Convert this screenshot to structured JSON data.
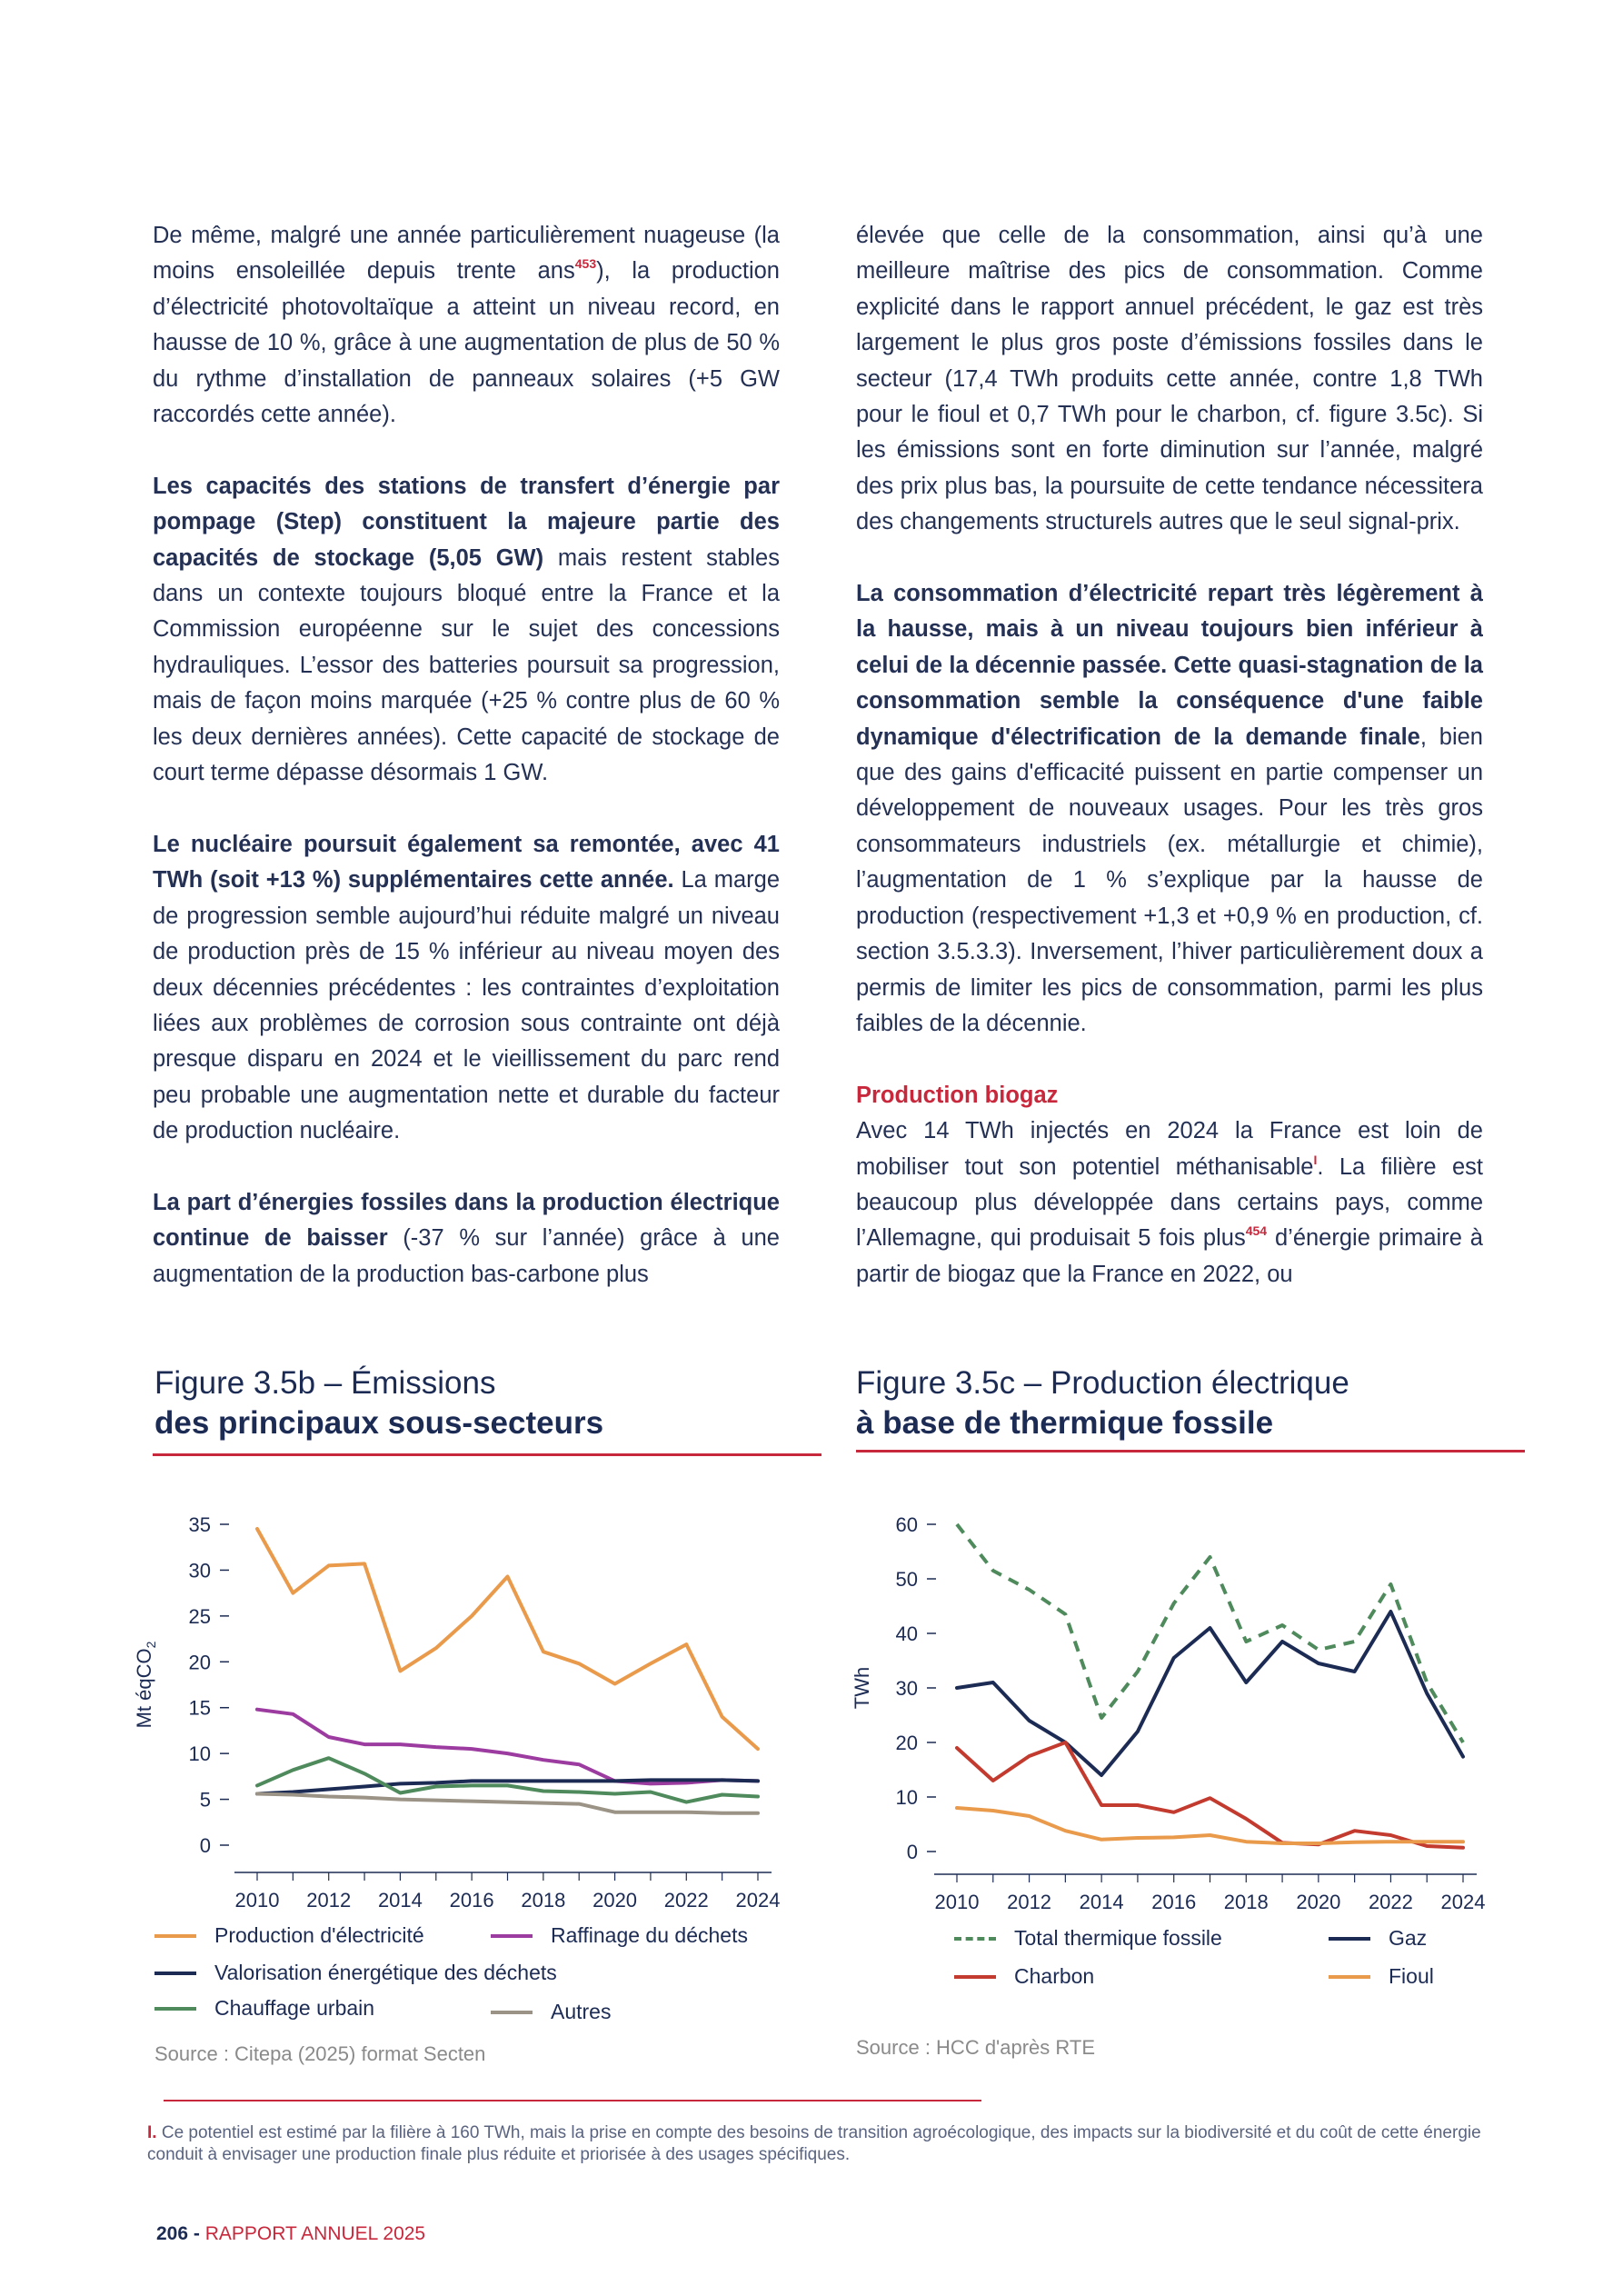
{
  "left_column": {
    "p1": {
      "a": "De même, malgré une année particulièrement nuageuse (la moins ensoleillée depuis trente ans",
      "ref": "453",
      "b": "), la production d’électricité photovoltaïque a atteint un niveau record, en hausse de 10 %, grâce à une augmentation de plus de 50 % du rythme d’installation de panneaux solaires (+5 GW raccordés cette année)."
    },
    "p2": {
      "bold": "Les capacités des stations de transfert d’énergie par pompage (Step) constituent la majeure partie des capacités de stockage (5,05 GW)",
      "text": " mais restent stables dans un contexte toujours bloqué entre la France et la Commission européenne sur le sujet des concessions hydrauliques. L’essor des batteries poursuit sa progression, mais de façon moins marquée (+25 % contre plus de 60 % les deux dernières années). Cette capacité de stockage de court terme dépasse désormais 1 GW."
    },
    "p3": {
      "bold": "Le nucléaire poursuit également sa remontée, avec 41 TWh (soit +13 %) supplémentaires cette année.",
      "text": " La marge de progression semble aujourd’hui réduite malgré un niveau de production près de 15 % inférieur au niveau moyen des deux décennies précédentes : les contraintes d’exploitation liées aux problèmes de corrosion sous contrainte ont déjà presque disparu en 2024 et le vieillissement du parc rend peu probable une augmentation nette et durable du facteur de production nucléaire."
    },
    "p4": {
      "bold": "La part d’énergies fossiles dans la production électrique continue de baisser",
      "text": " (-37 % sur l’année) grâce à une augmentation de la production bas-carbone plus"
    }
  },
  "right_column": {
    "p1": "élevée que celle de la consommation, ainsi qu’à une meilleure maîtrise des pics de consommation. Comme explicité dans le rapport annuel précédent, le gaz est très largement le plus gros poste d’émissions fossiles dans le secteur (17,4 TWh produits cette année, contre 1,8 TWh pour le fioul et 0,7 TWh pour le charbon, cf. figure 3.5c). Si les émissions sont en forte diminution sur l’année, malgré des prix plus bas, la poursuite de cette tendance nécessitera des changements structurels autres que le seul signal-prix.",
    "p2": {
      "bold": "La consommation d’électricité repart très légèrement à la hausse, mais à un niveau toujours bien inférieur à celui de la décennie passée. Cette quasi-stagnation de la consommation semble la conséquence d'une faible dynamique d'électrification de la demande finale",
      "text": ", bien que des gains d'efficacité puissent en partie compenser un développement de nouveaux usages. Pour les très gros consommateurs industriels (ex. métallurgie et chimie), l’augmentation de 1 % s’explique par la hausse de production (respectivement +1,3 et +0,9 % en production, cf. section 3.5.3.3). Inversement, l’hiver particulièrement doux a permis de limiter les pics de consommation, parmi les plus faibles de la décennie."
    },
    "heading": "Production biogaz",
    "p3": {
      "a": "Avec 14 TWh injectés en 2024 la France est loin de mobiliser tout son potentiel méthanisable",
      "ref1": "I",
      "b": ". La filière est beaucoup plus développée dans certains pays, comme l’Allemagne, qui produisait 5 fois plus",
      "ref2": "454",
      "c": " d’énergie primaire à partir de biogaz que la France en 2022, ou"
    }
  },
  "fig_b": {
    "title_line1": "Figure 3.5b – Émissions",
    "title_line2": "des principaux sous-secteurs",
    "source": "Source : Citepa (2025) format Secten",
    "ylabel_main": "Mt éqCO",
    "ylabel_sub": "2",
    "legend": [
      "Production d'électricité",
      "Raffinage du déchets",
      "Valorisation énergétique des déchets",
      "Chauffage urbain",
      "Autres"
    ]
  },
  "fig_c": {
    "title_line1": "Figure 3.5c – Production électrique",
    "title_line2": "à base de thermique fossile",
    "source": "Source : HCC d'après RTE",
    "ylabel": "TWh",
    "legend": [
      "Total thermique fossile",
      "Gaz",
      "Charbon",
      "Fioul"
    ]
  },
  "chart_data": [
    {
      "type": "line",
      "ylabel": "Mt éqCO2",
      "ylim": [
        0,
        35
      ],
      "yticks": [
        0,
        5,
        10,
        15,
        20,
        25,
        30,
        35
      ],
      "xlim": [
        2010,
        2024
      ],
      "xticks": [
        2010,
        2012,
        2014,
        2016,
        2018,
        2020,
        2022,
        2024
      ],
      "x": [
        2010,
        2011,
        2012,
        2013,
        2014,
        2015,
        2016,
        2017,
        2018,
        2019,
        2020,
        2021,
        2022,
        2023,
        2024
      ],
      "series": [
        {
          "name": "Production d'électricité",
          "color": "#e99a4b",
          "values": [
            34.5,
            27.5,
            30.5,
            30.7,
            19.0,
            21.5,
            25.0,
            29.3,
            21.1,
            19.8,
            17.6,
            19.8,
            21.9,
            14.0,
            10.5
          ]
        },
        {
          "name": "Raffinage du déchets",
          "color": "#9c3ba0",
          "values": [
            14.8,
            14.3,
            11.8,
            11.0,
            11.0,
            10.7,
            10.5,
            10.0,
            9.3,
            8.8,
            7.0,
            6.7,
            6.8,
            7.1,
            7.0
          ]
        },
        {
          "name": "Valorisation énergétique des déchets",
          "color": "#1c2b54",
          "values": [
            5.6,
            5.8,
            6.1,
            6.4,
            6.7,
            6.8,
            7.0,
            7.0,
            7.0,
            7.0,
            7.0,
            7.1,
            7.1,
            7.1,
            7.0
          ]
        },
        {
          "name": "Chauffage urbain",
          "color": "#4e8a5c",
          "values": [
            6.5,
            8.2,
            9.5,
            7.8,
            5.7,
            6.4,
            6.5,
            6.5,
            5.9,
            5.8,
            5.6,
            5.8,
            4.7,
            5.5,
            5.3
          ]
        },
        {
          "name": "Autres",
          "color": "#9b9385",
          "values": [
            5.6,
            5.5,
            5.3,
            5.2,
            5.0,
            4.9,
            4.8,
            4.7,
            4.6,
            4.5,
            3.6,
            3.6,
            3.6,
            3.5,
            3.5
          ]
        }
      ]
    },
    {
      "type": "line",
      "ylabel": "TWh",
      "ylim": [
        0,
        60
      ],
      "yticks": [
        0,
        10,
        20,
        30,
        40,
        50,
        60
      ],
      "xlim": [
        2010,
        2024
      ],
      "xticks": [
        2010,
        2012,
        2014,
        2016,
        2018,
        2020,
        2022,
        2024
      ],
      "x": [
        2010,
        2011,
        2012,
        2013,
        2014,
        2015,
        2016,
        2017,
        2018,
        2019,
        2020,
        2021,
        2022,
        2023,
        2024
      ],
      "series": [
        {
          "name": "Total thermique fossile",
          "color": "#4e8a5c",
          "dashed": true,
          "values": [
            60,
            51.5,
            48,
            43.5,
            24.5,
            33,
            45.5,
            54,
            38.5,
            41.5,
            37,
            38.5,
            49,
            31,
            20
          ]
        },
        {
          "name": "Gaz",
          "color": "#1c2b54",
          "values": [
            30,
            31,
            24,
            20,
            14,
            22,
            35.5,
            41,
            31,
            38.5,
            34.5,
            33,
            44,
            29,
            17.4
          ]
        },
        {
          "name": "Charbon",
          "color": "#c33a2e",
          "values": [
            19,
            13,
            17.5,
            20,
            8.5,
            8.5,
            7.2,
            9.8,
            6,
            1.6,
            1.3,
            3.8,
            3,
            1,
            0.7
          ]
        },
        {
          "name": "Fioul",
          "color": "#e99a4b",
          "values": [
            8,
            7.5,
            6.5,
            3.8,
            2.2,
            2.5,
            2.6,
            3.0,
            1.8,
            1.5,
            1.5,
            1.7,
            1.8,
            1.8,
            1.8
          ]
        }
      ]
    }
  ],
  "footnote": {
    "mark": "I.",
    "text": " Ce potentiel est estimé par la filière à 160 TWh, mais la prise en compte des besoins de transition agroécologique, des impacts sur la biodiversité et du coût de cette énergie conduit à envisager une production finale plus réduite et priorisée à des usages spécifiques."
  },
  "footer": {
    "page_number": "206 -",
    "label": " RAPPORT ANNUEL 2025"
  }
}
